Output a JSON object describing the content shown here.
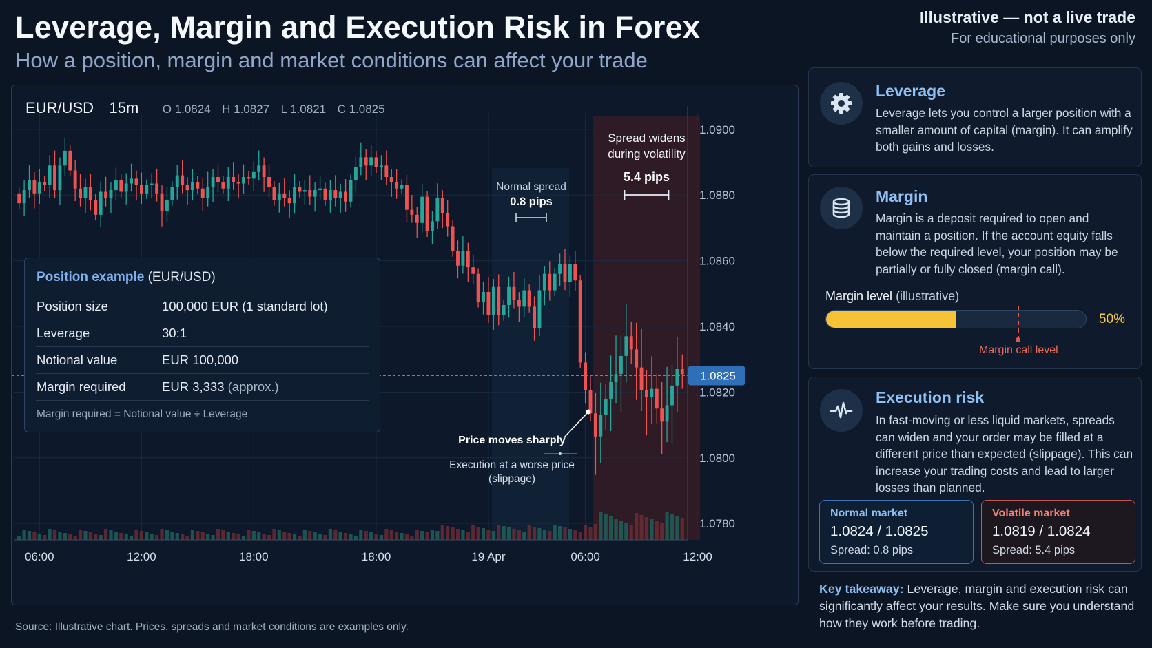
{
  "header": {
    "title": "Leverage, Margin and Execution Risk in Forex",
    "subtitle": "How a position, margin and market conditions can affect your trade",
    "disclaimer_main": "Illustrative — not a live trade",
    "disclaimer_sub": "For educational purposes only"
  },
  "chart_data": {
    "type": "candlestick",
    "symbol": "EUR/USD",
    "timeframe": "15m",
    "ohlc_labels": [
      "O 1.0824",
      "H 1.0827",
      "L 1.0821",
      "C 1.0825"
    ],
    "ylim": [
      1.0775,
      1.0905
    ],
    "y_ticks": [
      1.09,
      1.088,
      1.086,
      1.084,
      1.082,
      1.08,
      1.078
    ],
    "x_ticks": [
      {
        "label": "06:00",
        "index": 4
      },
      {
        "label": "12:00",
        "index": 24
      },
      {
        "label": "18:00",
        "index": 46
      },
      {
        "label": "18:00",
        "index": 70
      },
      {
        "label": "19 Apr",
        "index": 92
      },
      {
        "label": "06:00",
        "index": 111
      },
      {
        "label": "12:00",
        "index": 133
      }
    ],
    "current_price": "1.0825",
    "current_price_value": 1.0825,
    "closes": [
      1.08775,
      1.08815,
      1.08845,
      1.08805,
      1.0884,
      1.0883,
      1.0889,
      1.08815,
      1.0889,
      1.08935,
      1.08875,
      1.0882,
      1.0879,
      1.08825,
      1.08785,
      1.0874,
      1.0881,
      1.0879,
      1.08815,
      1.08845,
      1.0881,
      1.08835,
      1.0885,
      1.0883,
      1.08805,
      1.0883,
      1.08835,
      1.08805,
      1.0875,
      1.08785,
      1.08825,
      1.0886,
      1.0883,
      1.08815,
      1.0884,
      1.0882,
      1.0879,
      1.08825,
      1.08855,
      1.0884,
      1.0882,
      1.08855,
      1.0884,
      1.08835,
      1.08855,
      1.0885,
      1.0887,
      1.0889,
      1.08855,
      1.08825,
      1.08785,
      1.08805,
      1.0879,
      1.08775,
      1.08825,
      1.0881,
      1.08815,
      1.08795,
      1.08815,
      1.0882,
      1.08785,
      1.08815,
      1.0879,
      1.0881,
      1.0878,
      1.08845,
      1.08885,
      1.08915,
      1.0889,
      1.08915,
      1.08885,
      1.0889,
      1.08855,
      1.0884,
      1.0882,
      1.0883,
      1.08755,
      1.0874,
      1.08715,
      1.08795,
      1.0869,
      1.0872,
      1.0879,
      1.08745,
      1.08705,
      1.0863,
      1.08585,
      1.0863,
      1.0858,
      1.0856,
      1.08475,
      1.08505,
      1.08435,
      1.0852,
      1.08435,
      1.08465,
      1.0852,
      1.0848,
      1.0846,
      1.0851,
      1.0846,
      1.08395,
      1.0851,
      1.0856,
      1.0851,
      1.0856,
      1.0859,
      1.08535,
      1.0859,
      1.0854,
      1.0829,
      1.08205,
      1.08135,
      1.08065,
      1.0813,
      1.0818,
      1.0823,
      1.08255,
      1.0831,
      1.0837,
      1.0833,
      1.08275,
      1.08205,
      1.08185,
      1.0821,
      1.0815,
      1.0811,
      1.0816,
      1.0822,
      1.0827,
      1.08255
    ],
    "volatility_zone": {
      "start_index": 113,
      "end_index": 133,
      "label": "Spread widens during volatility",
      "pips": "5.4 pips"
    },
    "annotations": {
      "normal_spread_label": "Normal spread",
      "normal_spread_pips": "0.8 pips",
      "price_move_label": "Price moves sharply",
      "slippage_line1": "Execution at a worse price",
      "slippage_line2": "(slippage)"
    },
    "colors": {
      "up": "#26a69a",
      "down": "#ef5350",
      "zone": "#3a1c24"
    }
  },
  "position_example": {
    "title": "Position example",
    "title_suffix": "(EUR/USD)",
    "rows": [
      {
        "label": "Position size",
        "value": "100,000 EUR (1 standard lot)",
        "note": ""
      },
      {
        "label": "Leverage",
        "value": "30:1",
        "note": ""
      },
      {
        "label": "Notional value",
        "value": "EUR 100,000",
        "note": ""
      },
      {
        "label": "Margin required",
        "value": "EUR 3,333",
        "note": "(approx.)"
      }
    ],
    "formula": "Margin required = Notional value ÷ Leverage"
  },
  "cards": {
    "leverage": {
      "title": "Leverage",
      "icon": "gear-icon",
      "text": "Leverage lets you control a larger position with a smaller amount of capital (margin). It can amplify both gains and losses."
    },
    "margin": {
      "title": "Margin",
      "icon": "database-icon",
      "text": "Margin is a deposit required to open and maintain a position. If the account equity falls below the required level, your position may be partially or fully closed (margin call).",
      "level_label": "Margin level",
      "level_suffix": "(illustrative)",
      "level_percent": "50%",
      "level_fraction": 0.5,
      "margin_call_label": "Margin call level"
    },
    "execution": {
      "title": "Execution risk",
      "icon": "pulse-icon",
      "text": "In fast-moving or less liquid markets, spreads can widen and your order may be filled at a different price than expected (slippage). This can increase your trading costs and lead to larger losses than planned.",
      "normal": {
        "title": "Normal market",
        "quote": "1.0824 / 1.0825",
        "spread": "Spread: 0.8 pips"
      },
      "volatile": {
        "title": "Volatile market",
        "quote": "1.0819 / 1.0824",
        "spread": "Spread: 5.4 pips"
      }
    }
  },
  "takeaway": {
    "label": "Key takeaway:",
    "text": " Leverage, margin and execution risk can significantly affect your results. Make sure you understand how they work before trading."
  },
  "source": "Source: Illustrative chart. Prices, spreads and market conditions are examples only."
}
